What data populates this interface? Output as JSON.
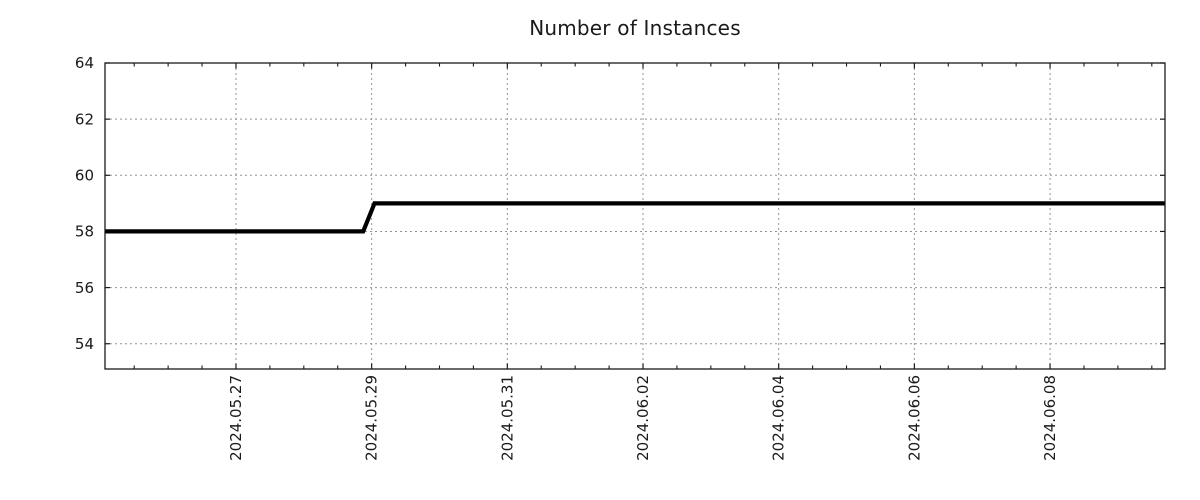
{
  "title": "Number of Instances",
  "chart_data": {
    "type": "line",
    "title": "Number of Instances",
    "xlabel": "",
    "ylabel": "",
    "legend_position": "none",
    "grid": {
      "show": true,
      "style": "dotted",
      "color": "#949494"
    },
    "x_axis": {
      "start": "2024-05-25 01:40",
      "end": "2024-06-09 16:40",
      "major_ticks": [
        "2024-05-27",
        "2024-05-29",
        "2024-05-31",
        "2024-06-02",
        "2024-06-04",
        "2024-06-06",
        "2024-06-08"
      ],
      "tick_labels": [
        "2024.05.27",
        "2024.05.29",
        "2024.05.31",
        "2024.06.02",
        "2024.06.04",
        "2024.06.06",
        "2024.06.08"
      ],
      "minor_tick_interval_hours": 12
    },
    "y_axis": {
      "min": 53.1,
      "max": 64,
      "ticks": [
        54,
        56,
        58,
        60,
        62,
        64
      ]
    },
    "series": [
      {
        "name": "instances",
        "color": "#000000",
        "line_width": 4.2,
        "points": [
          {
            "t": "2024-05-25 01:40",
            "v": 58
          },
          {
            "t": "2024-05-28 21:00",
            "v": 58
          },
          {
            "t": "2024-05-29 01:00",
            "v": 59
          },
          {
            "t": "2024-06-09 16:40",
            "v": 59
          }
        ]
      }
    ]
  },
  "style": {
    "background": "#ffffff",
    "axis_color": "#1a1a1a",
    "tick_color": "#1a1a1a",
    "text_color": "#1a1a1a",
    "grid_color": "#949494",
    "tick_label_font_size": 15,
    "title_font_size": 20
  }
}
